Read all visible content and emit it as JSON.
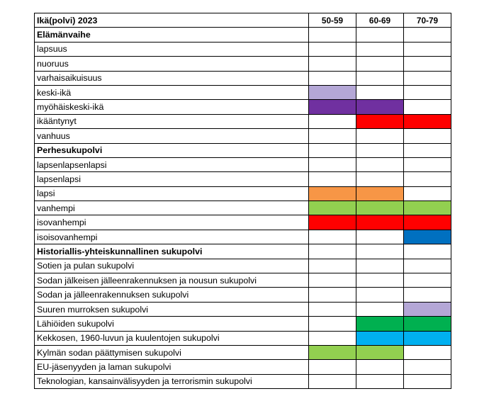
{
  "table": {
    "title": "Ikä(polvi) 2023",
    "columns": [
      "50-59",
      "60-69",
      "70-79"
    ],
    "palette": {
      "lavender": "#b4a7d6",
      "purple": "#7030a0",
      "red": "#ff0000",
      "orange": "#f79646",
      "green": "#92d050",
      "blue": "#0070c0",
      "dark-green": "#00b050",
      "light-blue": "#00b0f0"
    },
    "rows": [
      {
        "label": "Elämänvaihe",
        "section": true,
        "cells": [
          "",
          "",
          ""
        ]
      },
      {
        "label": "lapsuus",
        "cells": [
          "",
          "",
          ""
        ]
      },
      {
        "label": "nuoruus",
        "cells": [
          "",
          "",
          ""
        ]
      },
      {
        "label": "varhaisaikuisuus",
        "cells": [
          "",
          "",
          ""
        ]
      },
      {
        "label": "keski-ikä",
        "cells": [
          "lavender",
          "",
          ""
        ]
      },
      {
        "label": "myöhäiskeski-ikä",
        "cells": [
          "purple",
          "purple",
          ""
        ]
      },
      {
        "label": "ikääntynyt",
        "cells": [
          "",
          "red",
          "red"
        ]
      },
      {
        "label": "vanhuus",
        "cells": [
          "",
          "",
          ""
        ]
      },
      {
        "label": "Perhesukupolvi",
        "section": true,
        "cells": [
          "",
          "",
          ""
        ]
      },
      {
        "label": "lapsenlapsenlapsi",
        "cells": [
          "",
          "",
          ""
        ]
      },
      {
        "label": "lapsenlapsi",
        "cells": [
          "",
          "",
          ""
        ]
      },
      {
        "label": "lapsi",
        "cells": [
          "orange",
          "orange",
          ""
        ]
      },
      {
        "label": "vanhempi",
        "cells": [
          "green",
          "green",
          "green"
        ]
      },
      {
        "label": "isovanhempi",
        "cells": [
          "red",
          "red",
          "red"
        ]
      },
      {
        "label": "isoisovanhempi",
        "cells": [
          "",
          "",
          "blue"
        ]
      },
      {
        "label": "Historiallis-yhteiskunnallinen sukupolvi",
        "section": true,
        "cells": [
          "",
          "",
          ""
        ]
      },
      {
        "label": "Sotien ja pulan sukupolvi",
        "cells": [
          "",
          "",
          ""
        ]
      },
      {
        "label": "Sodan jälkeisen jälleenrakennuksen ja nousun sukupolvi",
        "cells": [
          "",
          "",
          ""
        ]
      },
      {
        "label": "Sodan ja jälleenrakennuksen sukupolvi",
        "cells": [
          "",
          "",
          ""
        ]
      },
      {
        "label": "Suuren murroksen sukupolvi",
        "cells": [
          "",
          "",
          "lavender"
        ]
      },
      {
        "label": "Lähiöiden sukupolvi",
        "cells": [
          "",
          "dark-green",
          "dark-green"
        ]
      },
      {
        "label": "Kekkosen, 1960-luvun ja kuulentojen sukupolvi",
        "cells": [
          "",
          "light-blue",
          "light-blue"
        ]
      },
      {
        "label": "Kylmän sodan päättymisen sukupolvi",
        "cells": [
          "green",
          "green",
          ""
        ]
      },
      {
        "label": "EU-jäsenyyden ja laman sukupolvi",
        "cells": [
          "",
          "",
          ""
        ]
      },
      {
        "label": "Teknologian, kansainvälisyyden ja terrorismin sukupolvi",
        "cells": [
          "",
          "",
          ""
        ]
      }
    ]
  }
}
